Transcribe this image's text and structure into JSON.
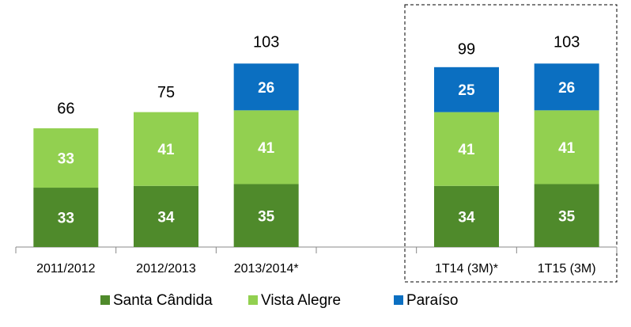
{
  "chart_data": {
    "type": "stacked_bar",
    "categories": [
      "2011/2012",
      "2012/2013",
      "2013/2014*",
      null,
      "1T14 (3M)*",
      "1T15 (3M)"
    ],
    "series": [
      {
        "name": "Santa Cândida",
        "color": "#4f8a2b",
        "values": [
          33,
          34,
          35,
          null,
          34,
          35
        ]
      },
      {
        "name": "Vista Alegre",
        "color": "#92d050",
        "values": [
          33,
          41,
          41,
          null,
          41,
          41
        ]
      },
      {
        "name": "Paraíso",
        "color": "#0b6fc1",
        "values": [
          null,
          null,
          26,
          null,
          25,
          26
        ]
      }
    ],
    "totals": [
      66,
      75,
      103,
      null,
      99,
      103
    ]
  }
}
